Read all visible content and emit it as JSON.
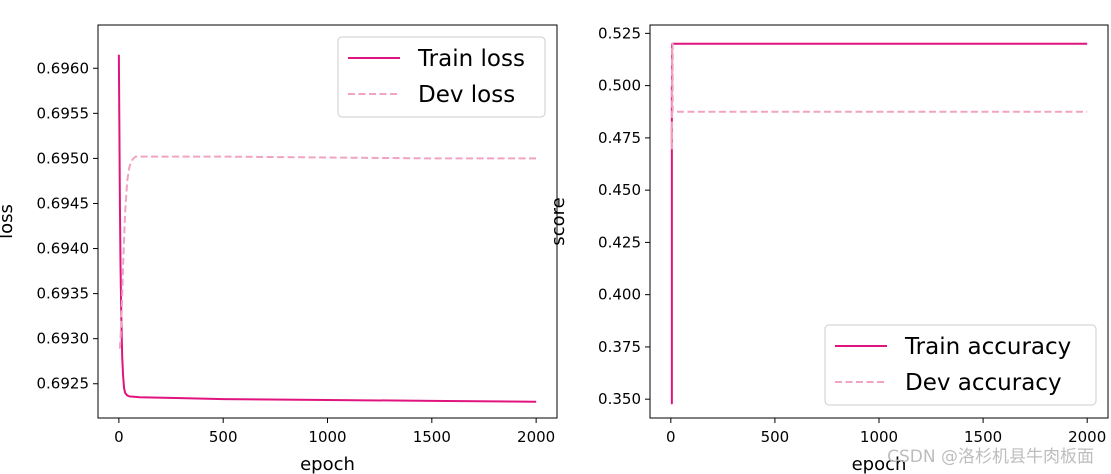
{
  "chart_data": [
    {
      "type": "line",
      "title": "",
      "xlabel": "epoch",
      "ylabel": "loss",
      "xlim": [
        -100,
        2100
      ],
      "ylim": [
        0.69212,
        0.69648
      ],
      "xticks": [
        0,
        500,
        1000,
        1500,
        2000
      ],
      "xtick_labels": [
        "0",
        "500",
        "1000",
        "1500",
        "2000"
      ],
      "yticks": [
        0.6925,
        0.693,
        0.6935,
        0.694,
        0.6945,
        0.695,
        0.6955,
        0.696
      ],
      "ytick_labels": [
        "0.6925",
        "0.6930",
        "0.6935",
        "0.6940",
        "0.6945",
        "0.6950",
        "0.6955",
        "0.6960"
      ],
      "grid": false,
      "legend_position": "top-right",
      "series": [
        {
          "name": "Train loss",
          "style": "solid",
          "color": "#e0147f",
          "x": [
            0,
            2,
            5,
            8,
            12,
            16,
            20,
            25,
            30,
            40,
            50,
            100,
            300,
            500,
            1000,
            1500,
            2000
          ],
          "y": [
            0.69615,
            0.6955,
            0.6945,
            0.6938,
            0.6932,
            0.6928,
            0.6926,
            0.69245,
            0.6924,
            0.69237,
            0.69236,
            0.69235,
            0.69234,
            0.69233,
            0.69232,
            0.69231,
            0.6923
          ]
        },
        {
          "name": "Dev loss",
          "style": "dashed",
          "color": "#f0a3c2",
          "x": [
            0,
            5,
            10,
            15,
            20,
            25,
            30,
            40,
            50,
            60,
            70,
            80,
            100,
            150,
            500,
            1000,
            1500,
            2000
          ],
          "y": [
            0.6929,
            0.6929,
            0.6931,
            0.6934,
            0.6938,
            0.6941,
            0.6944,
            0.69475,
            0.6949,
            0.69497,
            0.695,
            0.69502,
            0.69502,
            0.69502,
            0.69502,
            0.69501,
            0.695,
            0.695
          ]
        }
      ]
    },
    {
      "type": "line",
      "title": "",
      "xlabel": "epoch",
      "ylabel": "score",
      "xlim": [
        -100,
        2100
      ],
      "ylim": [
        0.341,
        0.529
      ],
      "xticks": [
        0,
        500,
        1000,
        1500,
        2000
      ],
      "xtick_labels": [
        "0",
        "500",
        "1000",
        "1500",
        "2000"
      ],
      "yticks": [
        0.35,
        0.375,
        0.4,
        0.425,
        0.45,
        0.475,
        0.5,
        0.525
      ],
      "ytick_labels": [
        "0.350",
        "0.375",
        "0.400",
        "0.425",
        "0.450",
        "0.475",
        "0.500",
        "0.525"
      ],
      "grid": false,
      "legend_position": "bottom-right",
      "series": [
        {
          "name": "Train accuracy",
          "style": "solid",
          "color": "#e0147f",
          "x": [
            0,
            5,
            5,
            5,
            5,
            5,
            5,
            6,
            6,
            8,
            2000
          ],
          "y": [
            0.48,
            0.48,
            0.348,
            0.348,
            0.406,
            0.406,
            0.5,
            0.5,
            0.52,
            0.52,
            0.52
          ]
        },
        {
          "name": "Dev accuracy",
          "style": "dashed",
          "color": "#f0a3c2",
          "x": [
            0,
            3,
            3,
            6,
            6,
            9,
            9,
            2000
          ],
          "y": [
            0.48,
            0.48,
            0.47,
            0.47,
            0.52,
            0.52,
            0.4875,
            0.4875
          ]
        }
      ]
    }
  ],
  "watermark": "CSDN @洛杉机县牛肉板面"
}
